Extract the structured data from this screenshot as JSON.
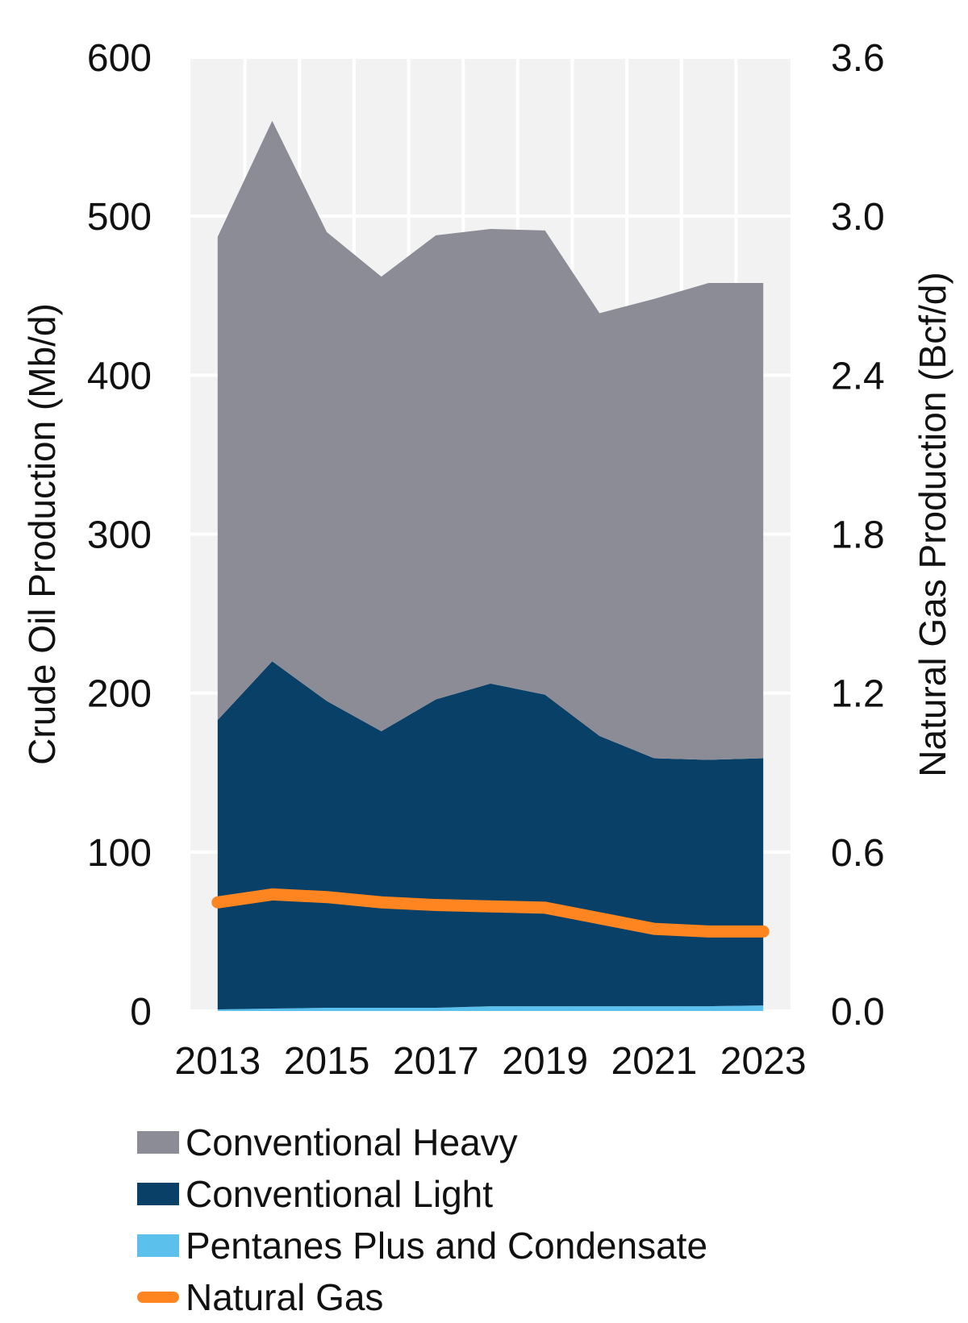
{
  "chart_data": {
    "type": "area",
    "categories": [
      "2013",
      "2014",
      "2015",
      "2016",
      "2017",
      "2018",
      "2019",
      "2020",
      "2021",
      "2022",
      "2023"
    ],
    "x_tick_labels": [
      "2013",
      "2015",
      "2017",
      "2019",
      "2021",
      "2023"
    ],
    "ylabel": "Crude Oil Production (Mb/d)",
    "y2label": "Natural Gas Production (Bcf/d)",
    "ylim": [
      0,
      600
    ],
    "y2lim": [
      0,
      3.6
    ],
    "y_ticks": [
      "0",
      "100",
      "200",
      "300",
      "400",
      "500",
      "600"
    ],
    "y2_ticks": [
      "0.0",
      "0.6",
      "1.2",
      "1.8",
      "2.4",
      "3.0",
      "3.6"
    ],
    "grid": true,
    "stacked": true,
    "legend_position": "bottom",
    "series": [
      {
        "name": "Pentanes Plus and Condensate",
        "type": "area",
        "axis": "left",
        "color": "#5bc0eb",
        "values": [
          1,
          1.5,
          2,
          2,
          2,
          3,
          3,
          3,
          3,
          3,
          3.5
        ]
      },
      {
        "name": "Conventional Light",
        "type": "area",
        "axis": "left",
        "color": "#084068",
        "values": [
          182,
          218.5,
          193,
          174,
          194,
          203,
          196,
          170,
          156,
          155,
          155.5
        ]
      },
      {
        "name": "Conventional Heavy",
        "type": "area",
        "axis": "left",
        "color": "#8c8c96",
        "values": [
          304,
          340,
          295,
          286,
          292,
          286,
          292,
          266,
          289,
          300,
          299
        ]
      },
      {
        "name": "Natural Gas",
        "type": "line",
        "axis": "right",
        "color": "#ff8520",
        "values": [
          0.41,
          0.44,
          0.43,
          0.41,
          0.4,
          0.395,
          0.39,
          0.35,
          0.31,
          0.3,
          0.3
        ]
      }
    ],
    "legend": [
      "Conventional Heavy",
      "Conventional Light",
      "Pentanes Plus and Condensate",
      "Natural Gas"
    ]
  }
}
